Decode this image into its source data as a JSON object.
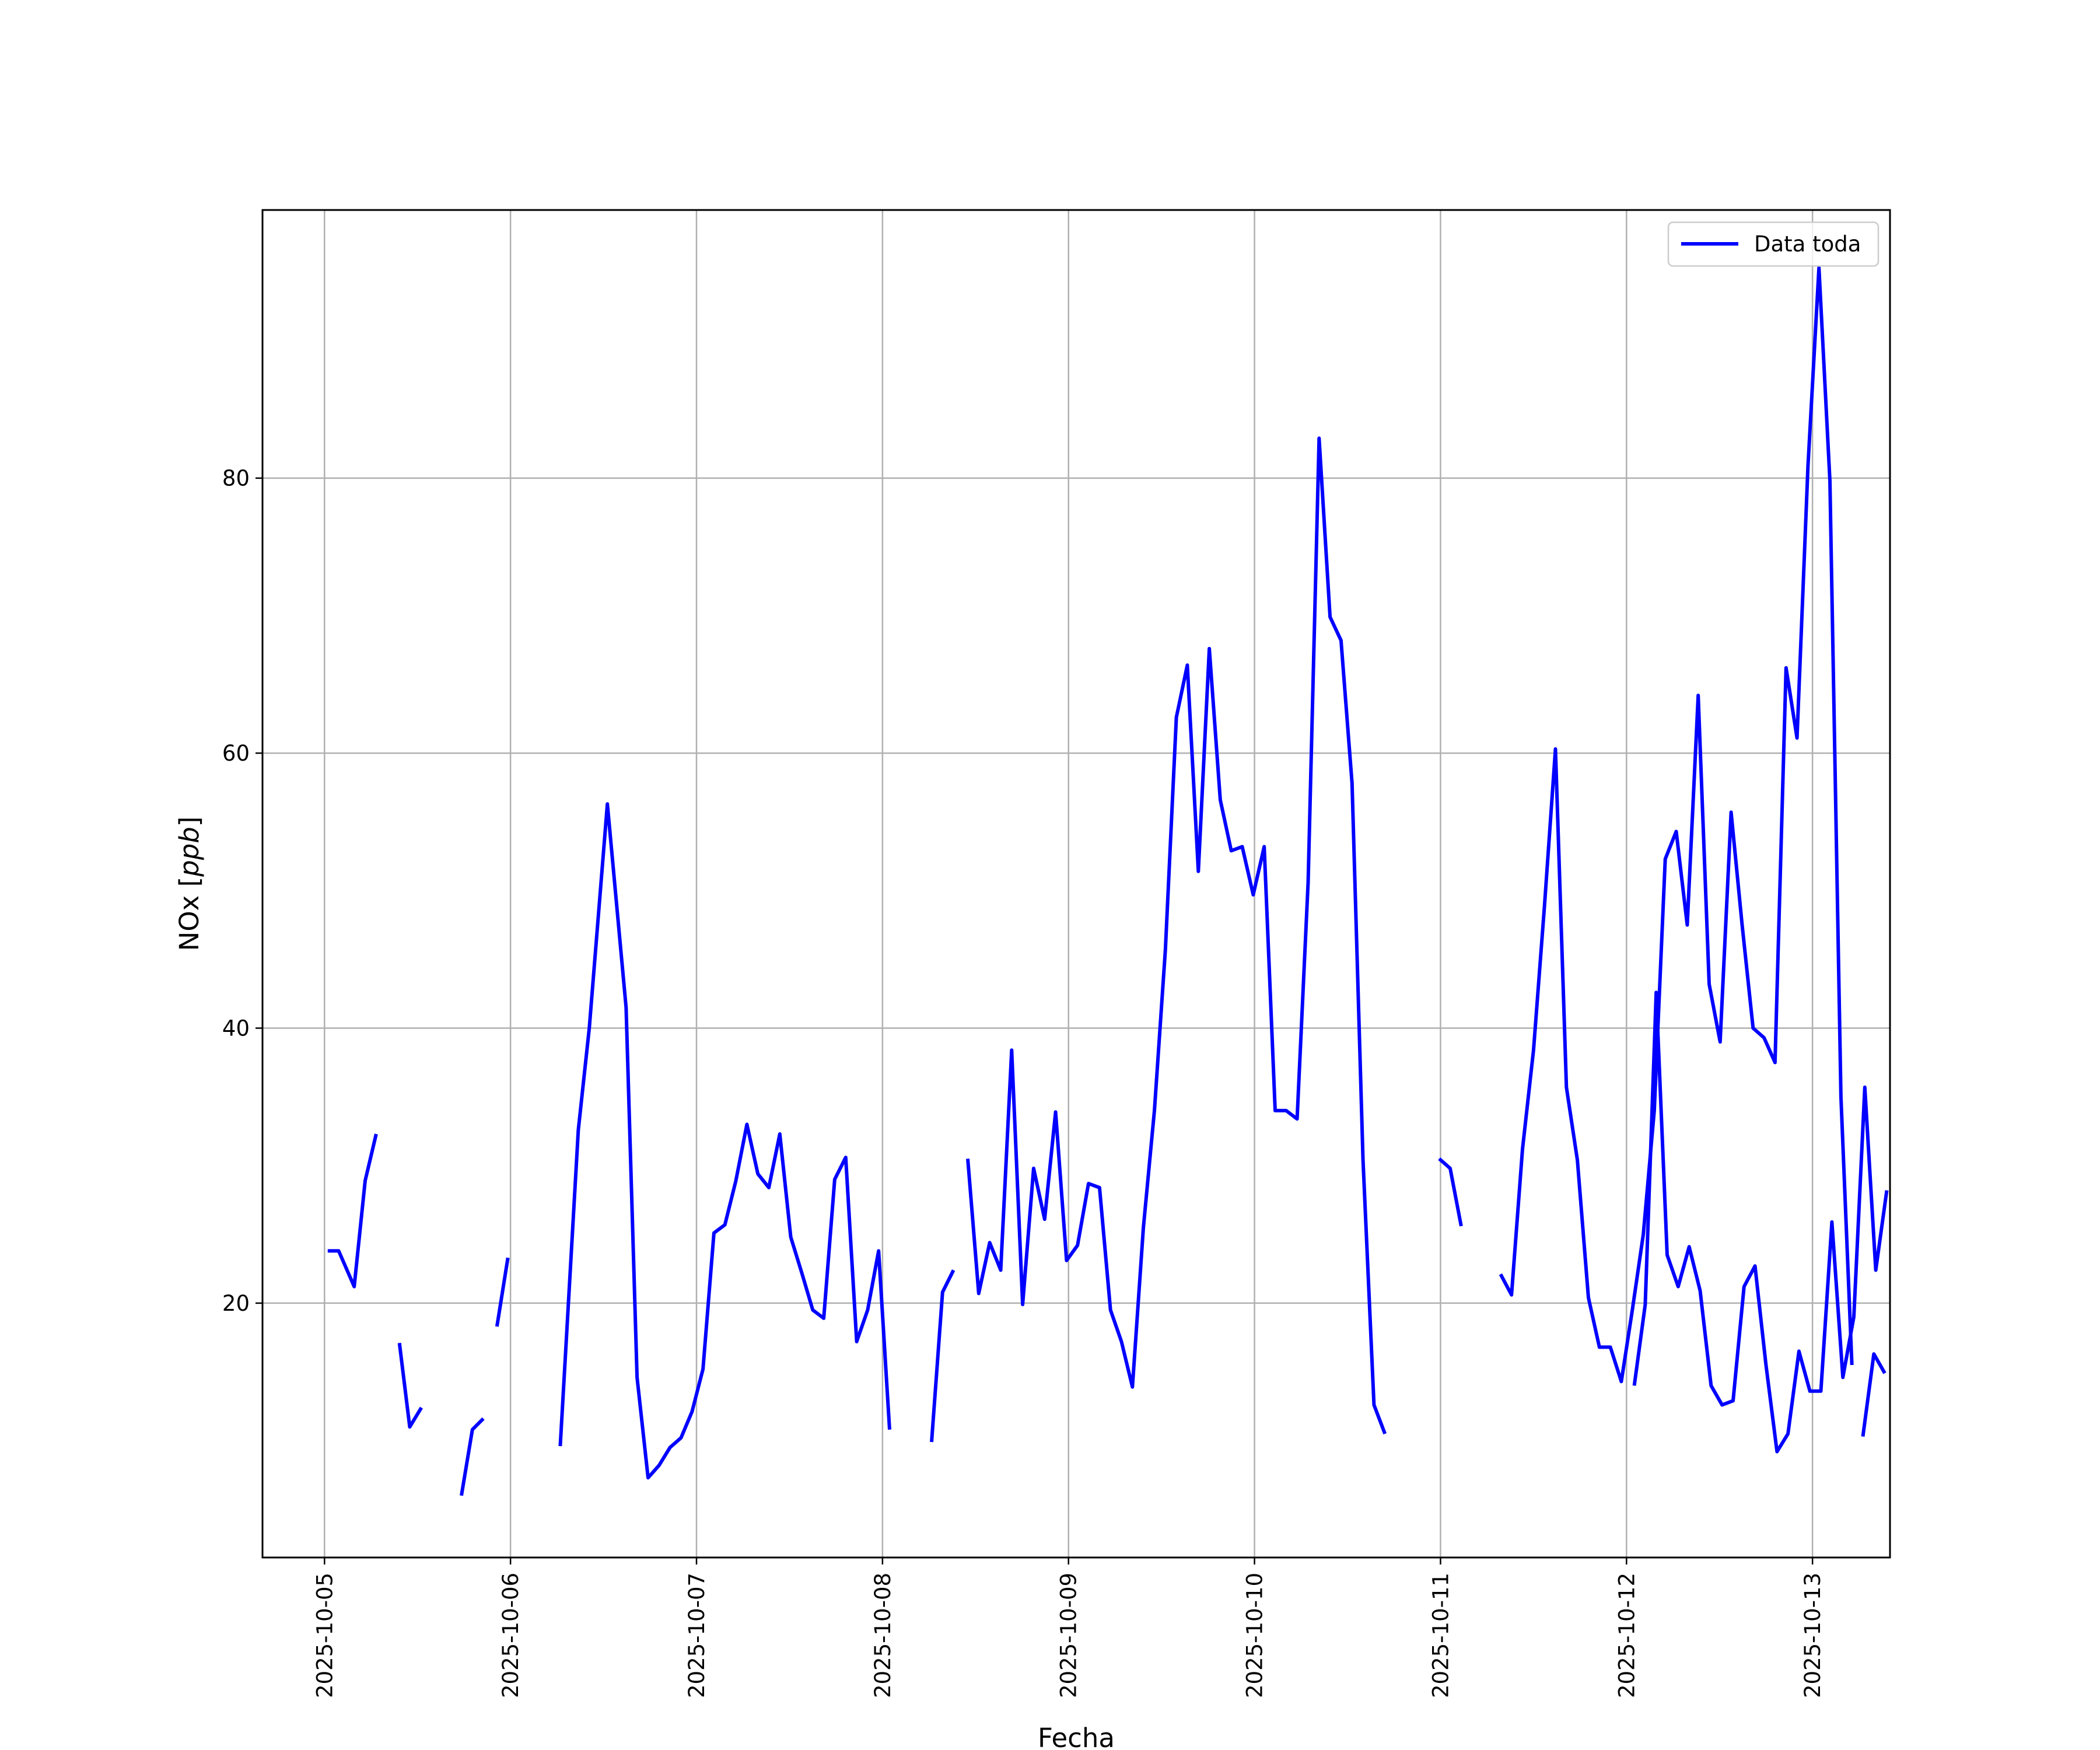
{
  "chart_data": {
    "type": "line",
    "title": "",
    "xlabel": "Fecha",
    "ylabel": "NOx [ppb]",
    "ylabel_main": "NOx ",
    "ylabel_unit": "ppb",
    "xlim": [
      "2025-10-04T16:00",
      "2025-10-13T10:00"
    ],
    "ylim": [
      1.5,
      99.5
    ],
    "x_ticks": [
      "2025-10-05",
      "2025-10-06",
      "2025-10-07",
      "2025-10-08",
      "2025-10-09",
      "2025-10-10",
      "2025-10-11",
      "2025-10-12",
      "2025-10-13"
    ],
    "y_ticks": [
      20,
      40,
      60,
      80
    ],
    "grid": true,
    "legend": {
      "position": "top-right",
      "entries": [
        "Data toda"
      ]
    },
    "series": [
      {
        "name": "Data toda",
        "color": "#0000ff",
        "points": [
          [
            "2025-10-05T00:25",
            23.8
          ],
          [
            "2025-10-05T01:50",
            23.8
          ],
          [
            "2025-10-05T03:50",
            21.2
          ],
          [
            "2025-10-05T05:15",
            28.9
          ],
          [
            "2025-10-05T06:40",
            32.3
          ],
          null,
          [
            "2025-10-05T09:40",
            17.1
          ],
          [
            "2025-10-05T11:00",
            11.0
          ],
          [
            "2025-10-05T12:30",
            12.4
          ],
          null,
          [
            "2025-10-05T17:40",
            6.0
          ],
          [
            "2025-10-05T19:05",
            10.8
          ],
          [
            "2025-10-05T20:30",
            11.6
          ],
          null,
          [
            "2025-10-05T22:15",
            18.3
          ],
          [
            "2025-10-05T23:40",
            23.3
          ],
          null,
          [
            "2025-10-06T06:25",
            9.6
          ],
          [
            "2025-10-06T08:45",
            32.6
          ],
          [
            "2025-10-06T10:10",
            40.0
          ],
          [
            "2025-10-06T12:30",
            56.3
          ],
          [
            "2025-10-06T14:55",
            41.5
          ],
          [
            "2025-10-06T16:20",
            14.6
          ],
          [
            "2025-10-06T17:45",
            7.3
          ],
          [
            "2025-10-06T19:10",
            8.2
          ],
          [
            "2025-10-06T20:35",
            9.5
          ],
          [
            "2025-10-06T22:00",
            10.2
          ],
          [
            "2025-10-06T23:25",
            12.1
          ],
          [
            "2025-10-07T00:50",
            15.2
          ],
          [
            "2025-10-07T02:15",
            25.1
          ],
          [
            "2025-10-07T03:40",
            25.7
          ],
          [
            "2025-10-07T05:05",
            28.9
          ],
          [
            "2025-10-07T06:30",
            33.0
          ],
          [
            "2025-10-07T07:55",
            29.4
          ],
          [
            "2025-10-07T09:20",
            28.4
          ],
          [
            "2025-10-07T10:45",
            32.3
          ],
          [
            "2025-10-07T12:10",
            24.8
          ],
          [
            "2025-10-07T13:35",
            22.2
          ],
          [
            "2025-10-07T15:00",
            19.5
          ],
          [
            "2025-10-07T16:25",
            18.9
          ],
          [
            "2025-10-07T17:50",
            29.0
          ],
          [
            "2025-10-07T19:15",
            30.6
          ],
          [
            "2025-10-07T20:40",
            17.2
          ],
          [
            "2025-10-07T22:05",
            19.5
          ],
          [
            "2025-10-07T23:30",
            23.8
          ],
          [
            "2025-10-08T00:55",
            10.8
          ],
          null,
          [
            "2025-10-08T06:20",
            9.9
          ],
          [
            "2025-10-08T07:45",
            20.8
          ],
          [
            "2025-10-08T09:10",
            22.4
          ],
          null,
          [
            "2025-10-08T11:00",
            30.5
          ],
          [
            "2025-10-08T12:25",
            20.7
          ],
          [
            "2025-10-08T13:50",
            24.4
          ],
          [
            "2025-10-08T15:15",
            22.4
          ],
          [
            "2025-10-08T16:40",
            38.4
          ],
          [
            "2025-10-08T18:05",
            19.9
          ],
          [
            "2025-10-08T19:30",
            29.8
          ],
          [
            "2025-10-08T20:55",
            26.1
          ],
          [
            "2025-10-08T22:20",
            33.9
          ],
          [
            "2025-10-08T23:45",
            23.1
          ],
          [
            "2025-10-09T01:10",
            24.2
          ],
          [
            "2025-10-09T02:35",
            28.7
          ],
          [
            "2025-10-09T04:00",
            28.4
          ],
          [
            "2025-10-09T05:25",
            19.5
          ],
          [
            "2025-10-09T06:50",
            17.2
          ],
          [
            "2025-10-09T08:15",
            13.9
          ],
          [
            "2025-10-09T09:40",
            25.5
          ],
          [
            "2025-10-09T11:05",
            34.0
          ],
          [
            "2025-10-09T12:30",
            45.7
          ],
          [
            "2025-10-09T13:55",
            62.6
          ],
          [
            "2025-10-09T15:20",
            66.4
          ],
          [
            "2025-10-09T16:45",
            51.4
          ],
          [
            "2025-10-09T18:10",
            67.6
          ],
          [
            "2025-10-09T19:35",
            56.6
          ],
          [
            "2025-10-09T21:00",
            52.9
          ],
          [
            "2025-10-09T22:25",
            53.2
          ],
          [
            "2025-10-09T23:50",
            49.7
          ],
          [
            "2025-10-10T01:15",
            53.2
          ],
          [
            "2025-10-10T02:40",
            34.0
          ],
          [
            "2025-10-10T04:05",
            34.0
          ],
          [
            "2025-10-10T05:30",
            33.4
          ],
          [
            "2025-10-10T06:55",
            50.6
          ],
          [
            "2025-10-10T08:20",
            82.9
          ],
          [
            "2025-10-10T09:45",
            69.9
          ],
          [
            "2025-10-10T11:10",
            68.2
          ],
          [
            "2025-10-10T12:35",
            57.8
          ],
          [
            "2025-10-10T14:00",
            30.4
          ],
          [
            "2025-10-10T15:25",
            12.6
          ],
          [
            "2025-10-10T16:50",
            10.5
          ],
          null,
          [
            "2025-10-10T23:50",
            30.5
          ],
          [
            "2025-10-11T01:15",
            29.8
          ],
          [
            "2025-10-11T02:40",
            25.6
          ],
          null,
          [
            "2025-10-11T07:45",
            22.1
          ],
          [
            "2025-10-11T09:10",
            20.6
          ],
          [
            "2025-10-11T10:35",
            31.2
          ],
          [
            "2025-10-11T12:00",
            38.4
          ],
          [
            "2025-10-11T13:25",
            48.9
          ],
          [
            "2025-10-11T14:50",
            60.3
          ],
          [
            "2025-10-11T16:15",
            35.7
          ],
          [
            "2025-10-11T17:40",
            30.4
          ],
          [
            "2025-10-11T19:05",
            20.4
          ],
          [
            "2025-10-11T20:30",
            16.8
          ],
          [
            "2025-10-11T21:55",
            16.8
          ],
          [
            "2025-10-11T23:20",
            14.3
          ],
          [
            "2025-10-12T00:45",
            19.5
          ],
          [
            "2025-10-12T02:10",
            25.0
          ],
          [
            "2025-10-12T03:35",
            34.0
          ],
          [
            "2025-10-12T05:00",
            52.3
          ],
          [
            "2025-10-12T06:25",
            54.3
          ],
          [
            "2025-10-12T07:50",
            47.5
          ],
          [
            "2025-10-12T09:15",
            64.2
          ],
          [
            "2025-10-12T10:40",
            43.2
          ],
          [
            "2025-10-12T12:05",
            39.0
          ],
          [
            "2025-10-12T13:30",
            55.7
          ],
          [
            "2025-10-12T14:55",
            47.5
          ],
          [
            "2025-10-12T16:20",
            40.0
          ],
          [
            "2025-10-12T17:45",
            39.3
          ],
          [
            "2025-10-12T19:10",
            37.5
          ],
          [
            "2025-10-12T20:35",
            66.2
          ],
          [
            "2025-10-12T22:00",
            61.1
          ],
          [
            "2025-10-12T23:25",
            80.9
          ],
          [
            "2025-10-13T00:50",
            95.3
          ],
          [
            "2025-10-13T02:15",
            79.8
          ],
          [
            "2025-10-13T03:40",
            35.0
          ],
          [
            "2025-10-13T05:05",
            15.5
          ],
          null,
          [
            "2025-10-13T06:30",
            10.3
          ],
          [
            "2025-10-13T07:55",
            16.3
          ],
          [
            "2025-10-13T09:20",
            14.9
          ],
          null,
          [
            "2025-10-12T01:00",
            14.0
          ],
          [
            "2025-10-12T02:25",
            19.9
          ],
          [
            "2025-10-12T03:50",
            42.6
          ],
          [
            "2025-10-12T05:15",
            23.5
          ],
          [
            "2025-10-12T06:40",
            21.2
          ],
          [
            "2025-10-12T08:05",
            24.1
          ],
          [
            "2025-10-12T09:30",
            20.9
          ],
          [
            "2025-10-12T10:55",
            14.0
          ],
          [
            "2025-10-12T12:20",
            12.6
          ],
          [
            "2025-10-12T13:45",
            12.9
          ],
          [
            "2025-10-12T15:10",
            21.2
          ],
          [
            "2025-10-12T16:35",
            22.7
          ],
          [
            "2025-10-12T18:00",
            15.5
          ],
          [
            "2025-10-12T19:25",
            9.2
          ],
          [
            "2025-10-12T20:50",
            10.5
          ],
          [
            "2025-10-12T22:15",
            16.5
          ],
          [
            "2025-10-12T23:40",
            13.6
          ],
          [
            "2025-10-13T01:05",
            13.6
          ],
          [
            "2025-10-13T02:30",
            25.9
          ],
          [
            "2025-10-13T03:55",
            14.6
          ],
          [
            "2025-10-13T05:20",
            19.0
          ],
          [
            "2025-10-13T06:45",
            35.7
          ],
          [
            "2025-10-13T08:10",
            22.4
          ],
          [
            "2025-10-13T09:35",
            28.2
          ]
        ]
      }
    ]
  }
}
